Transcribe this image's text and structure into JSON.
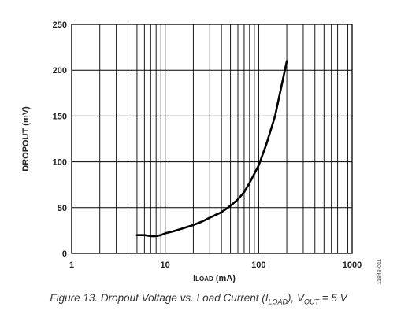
{
  "chart_data": {
    "type": "line",
    "title": "",
    "xlabel": {
      "main": "I",
      "sub": "LOAD",
      "unit": " (mA)"
    },
    "ylabel": "DROPOUT (mV)",
    "xscale": "log",
    "xlim": [
      1,
      1000
    ],
    "ylim": [
      0,
      250
    ],
    "x_tick_labels": [
      "1",
      "10",
      "100",
      "1000"
    ],
    "y_tick_labels": [
      "0",
      "50",
      "100",
      "150",
      "200",
      "250"
    ],
    "grid": true,
    "series": [
      {
        "x": [
          5,
          6,
          7,
          8,
          9,
          10,
          12,
          15,
          20,
          25,
          30,
          40,
          50,
          60,
          70,
          80,
          90,
          100,
          120,
          150,
          200
        ],
        "y": [
          20,
          20,
          19,
          19,
          20,
          22,
          24,
          27,
          31,
          35,
          39,
          45,
          52,
          59,
          67,
          77,
          87,
          96,
          118,
          150,
          210
        ]
      }
    ],
    "line_color": "#000000"
  },
  "caption": {
    "prefix": "Figure 13. Dropout Voltage vs. Load Current (I",
    "sub1": "LOAD",
    "mid": "), V",
    "sub2": "OUT",
    "suffix": " = 5 V"
  },
  "figure_id": "11848-011"
}
